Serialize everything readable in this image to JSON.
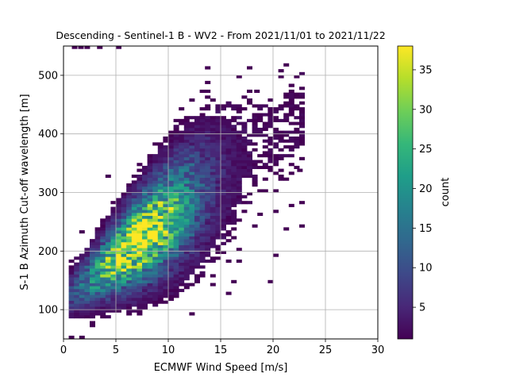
{
  "chart_data": {
    "type": "heatmap",
    "title": "Descending - Sentinel-1 B - WV2 - From 2021/11/01 to 2021/11/22",
    "xlabel": "ECMWF Wind Speed [m/s]",
    "ylabel": "S-1 B Azimuth Cut-off wavelength [m]",
    "xlim": [
      0,
      30
    ],
    "ylim": [
      50,
      550
    ],
    "x_ticks": [
      0,
      5,
      10,
      15,
      20,
      25,
      30
    ],
    "y_ticks": [
      100,
      200,
      300,
      400,
      500
    ],
    "grid": true,
    "colorbar": {
      "label": "count",
      "colormap": "viridis",
      "range": [
        1,
        38
      ],
      "ticks": [
        5,
        10,
        15,
        20,
        25,
        30,
        35
      ]
    },
    "distribution": {
      "description_points": [
        {
          "wind_speed": 7.5,
          "cutoff": 185,
          "count": 38
        },
        {
          "wind_speed": 5.5,
          "cutoff": 170,
          "count": 28
        },
        {
          "wind_speed": 9.0,
          "cutoff": 210,
          "count": 22
        },
        {
          "wind_speed": 3.5,
          "cutoff": 140,
          "count": 14
        },
        {
          "wind_speed": 12.0,
          "cutoff": 250,
          "count": 8
        },
        {
          "wind_speed": 15.0,
          "cutoff": 310,
          "count": 3
        },
        {
          "wind_speed": 18.0,
          "cutoff": 370,
          "count": 1
        },
        {
          "wind_speed": 21.0,
          "cutoff": 480,
          "count": 1
        }
      ]
    }
  },
  "colors": {
    "colormap": [
      "#440154",
      "#482878",
      "#3e4989",
      "#31688e",
      "#26828e",
      "#1f9e89",
      "#35b779",
      "#6ece58",
      "#b5de2b",
      "#fde725"
    ],
    "grid": "#b0b0b0"
  }
}
